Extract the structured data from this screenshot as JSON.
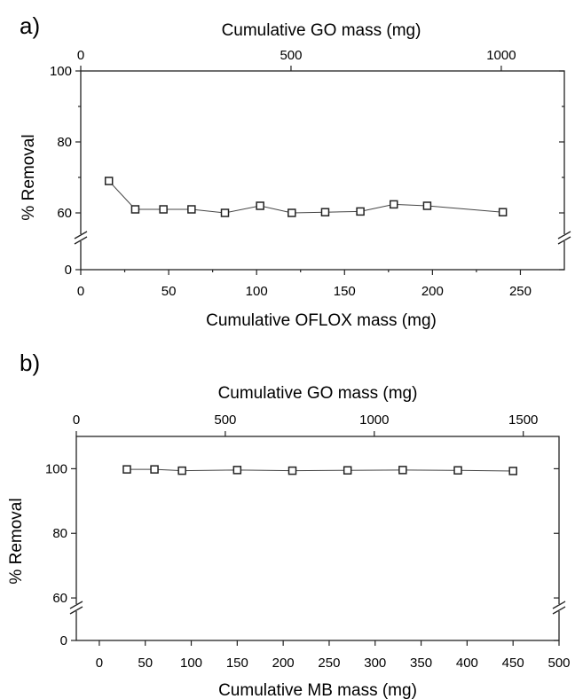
{
  "chart_data": [
    {
      "panel": "a)",
      "type": "scatter",
      "xlabel": "Cumulative OFLOX mass (mg)",
      "x2label": "Cumulative GO mass (mg)",
      "ylabel": "% Removal",
      "xlim": [
        0,
        275
      ],
      "x_ticks": [
        "0",
        "50",
        "100",
        "150",
        "200",
        "250"
      ],
      "x_tick_values": [
        0,
        50,
        100,
        150,
        200,
        250
      ],
      "x2_ticks": [
        "0",
        "500",
        "1000"
      ],
      "x2_tick_values": [
        0,
        500,
        1000
      ],
      "x2lim": [
        0,
        1150
      ],
      "y_ticks": [
        "100",
        "80",
        "60",
        "0"
      ],
      "y_tick_values": [
        100,
        80,
        60,
        0
      ],
      "y_segments": {
        "upper": [
          53,
          100
        ],
        "lower": [
          0,
          6
        ]
      },
      "axis_break": true,
      "series": [
        {
          "x": [
            16,
            31,
            47,
            63,
            82,
            102,
            120,
            139,
            159,
            178,
            197,
            240
          ],
          "y": [
            69,
            61,
            61,
            61,
            60,
            62,
            60,
            60.2,
            60.4,
            62.4,
            62,
            60.2
          ]
        }
      ]
    },
    {
      "panel": "b)",
      "type": "scatter",
      "xlabel": "Cumulative MB mass (mg)",
      "x2label": "Cumulative GO mass (mg)",
      "ylabel": "% Removal",
      "xlim": [
        -25,
        500
      ],
      "x_ticks": [
        "0",
        "50",
        "100",
        "150",
        "200",
        "250",
        "300",
        "350",
        "400",
        "450",
        "500"
      ],
      "x_tick_values": [
        0,
        50,
        100,
        150,
        200,
        250,
        300,
        350,
        400,
        450,
        500
      ],
      "x2_ticks": [
        "0",
        "500",
        "1000",
        "1500"
      ],
      "x2_tick_values": [
        0,
        500,
        1000,
        1500
      ],
      "x2lim": [
        0,
        1620
      ],
      "y_ticks": [
        "100",
        "80",
        "60",
        "0"
      ],
      "y_tick_values": [
        100,
        80,
        60,
        0
      ],
      "y_segments": {
        "upper": [
          57,
          110
        ],
        "lower": [
          0,
          6
        ]
      },
      "axis_break": true,
      "series": [
        {
          "x": [
            30,
            60,
            90,
            150,
            210,
            270,
            330,
            390,
            450
          ],
          "y": [
            99.8,
            99.8,
            99.4,
            99.6,
            99.4,
            99.5,
            99.6,
            99.5,
            99.3
          ]
        }
      ]
    }
  ]
}
